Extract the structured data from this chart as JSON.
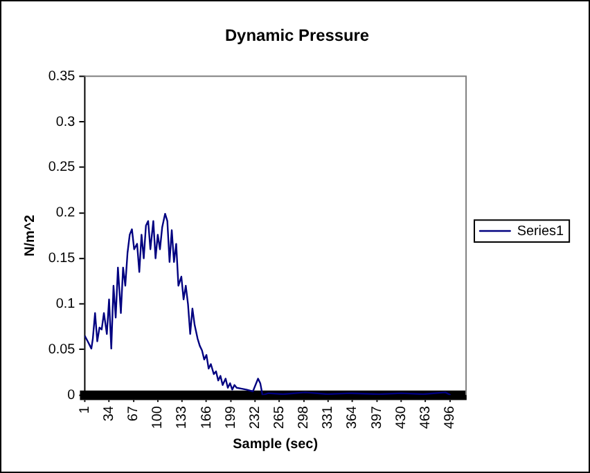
{
  "chart_data": {
    "type": "line",
    "title": "Dynamic Pressure",
    "xlabel": "Sample (sec)",
    "ylabel": "N/m^2",
    "x": [
      1,
      5,
      10,
      12,
      15,
      18,
      21,
      24,
      27,
      31,
      34,
      37,
      40,
      43,
      46,
      50,
      53,
      56,
      59,
      62,
      65,
      68,
      72,
      75,
      78,
      81,
      84,
      87,
      90,
      94,
      97,
      100,
      103,
      106,
      110,
      113,
      116,
      119,
      122,
      125,
      128,
      132,
      135,
      138,
      141,
      144,
      147,
      150,
      154,
      157,
      160,
      163,
      166,
      169,
      172,
      176,
      179,
      182,
      185,
      188,
      192,
      195,
      198,
      201,
      204,
      207,
      214,
      220,
      229,
      236,
      239,
      242,
      250,
      270,
      300,
      330,
      360,
      400,
      430,
      460,
      490,
      497
    ],
    "xlim": [
      1,
      518
    ],
    "xticks": [
      1,
      34,
      67,
      100,
      133,
      166,
      199,
      232,
      265,
      298,
      331,
      364,
      397,
      430,
      463,
      496
    ],
    "ylim": [
      0,
      0.35
    ],
    "yticks": [
      0,
      0.05,
      0.1,
      0.15,
      0.2,
      0.25,
      0.3,
      0.35
    ],
    "series": [
      {
        "name": "Series1",
        "color": "#000080",
        "values": [
          0.065,
          0.059,
          0.051,
          0.062,
          0.09,
          0.059,
          0.074,
          0.072,
          0.09,
          0.067,
          0.105,
          0.051,
          0.12,
          0.085,
          0.14,
          0.09,
          0.14,
          0.12,
          0.156,
          0.176,
          0.182,
          0.16,
          0.166,
          0.135,
          0.176,
          0.15,
          0.186,
          0.191,
          0.16,
          0.191,
          0.15,
          0.176,
          0.16,
          0.184,
          0.199,
          0.191,
          0.146,
          0.181,
          0.146,
          0.166,
          0.12,
          0.13,
          0.105,
          0.12,
          0.1,
          0.067,
          0.095,
          0.077,
          0.062,
          0.054,
          0.049,
          0.039,
          0.044,
          0.029,
          0.034,
          0.023,
          0.026,
          0.016,
          0.021,
          0.011,
          0.018,
          0.008,
          0.013,
          0.006,
          0.011,
          0.008,
          0.007,
          0.006,
          0.004,
          0.018,
          0.013,
          0,
          0.002,
          0.001,
          0.003,
          0.001,
          0.002,
          0.001,
          0.002,
          0.001,
          0.003,
          0
        ]
      }
    ],
    "grid": false,
    "legend": "right",
    "marker": "none",
    "line_style": "solid"
  }
}
